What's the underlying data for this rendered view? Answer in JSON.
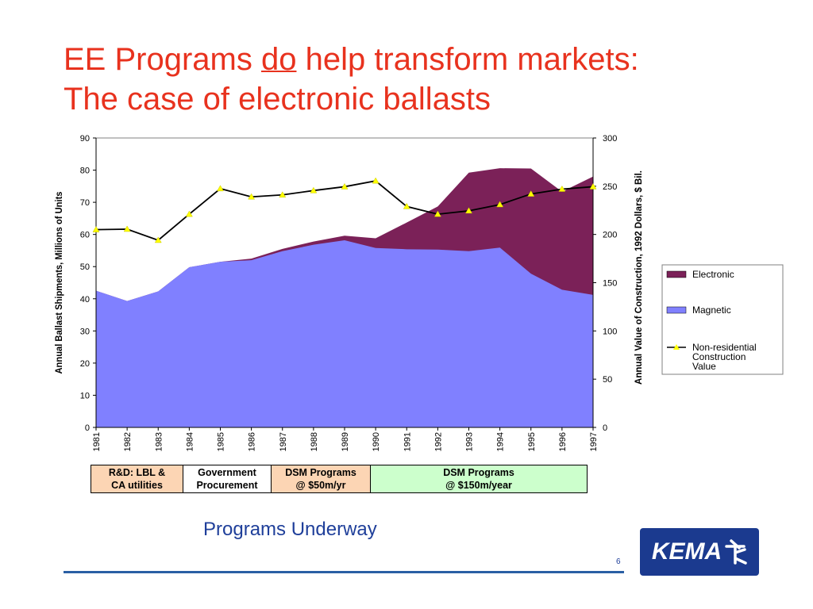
{
  "title": {
    "line1_pre": "EE Programs ",
    "line1_emph": "do",
    "line1_post": " help transform markets:",
    "line2": "The case of electronic ballasts"
  },
  "chart_data": {
    "type": "area",
    "stacked": true,
    "categories": [
      "1981",
      "1982",
      "1983",
      "1984",
      "1985",
      "1986",
      "1987",
      "1988",
      "1989",
      "1990",
      "1991",
      "1992",
      "1993",
      "1994",
      "1995",
      "1996",
      "1997"
    ],
    "series": [
      {
        "name": "Magnetic",
        "type": "area",
        "axis": "left",
        "color": "#8080ff",
        "values": [
          42.5,
          39.3,
          42.3,
          49.8,
          51.5,
          52.0,
          54.8,
          56.8,
          58.2,
          55.8,
          55.4,
          55.3,
          54.8,
          55.9,
          47.8,
          42.8,
          41.2
        ]
      },
      {
        "name": "Electronic",
        "type": "area",
        "axis": "left",
        "color": "#7b2158",
        "values": [
          0.0,
          0.0,
          0.0,
          0.0,
          0.0,
          0.5,
          0.7,
          1.0,
          1.4,
          3.0,
          8.3,
          13.4,
          24.4,
          24.7,
          32.7,
          30.5,
          36.8
        ]
      },
      {
        "name": "Non-residential Construction Value",
        "type": "line",
        "axis": "right",
        "color": "#000000",
        "marker_color": "#ffff00",
        "values": [
          205,
          205.5,
          194,
          221,
          247.5,
          239,
          241,
          245.5,
          249.5,
          255.5,
          229,
          221,
          224.5,
          231,
          242,
          247,
          249.5
        ]
      }
    ],
    "ylabel": "Annual Ballast Shipments, Millions of Units",
    "ylim": [
      0,
      90
    ],
    "yticks": [
      "0",
      "10",
      "20",
      "30",
      "40",
      "50",
      "60",
      "70",
      "80",
      "90"
    ],
    "y2label": "Annual Value of Construction, 1992 Dollars, $ Bil.",
    "y2lim": [
      0,
      300
    ],
    "y2ticks": [
      "0",
      "50",
      "100",
      "150",
      "200",
      "250",
      "300"
    ],
    "legend": {
      "placement": "right",
      "entries": [
        {
          "label": "Electronic",
          "style": "swatch",
          "color": "#7b2158"
        },
        {
          "label": "Magnetic",
          "style": "swatch",
          "color": "#8080ff"
        },
        {
          "label": "Non-residential Construction Value",
          "lines": [
            "Non-residential",
            "Construction",
            "Value"
          ],
          "style": "line-marker",
          "color": "#000000"
        }
      ]
    },
    "grid": false
  },
  "phases": [
    {
      "line1": "R&D:  LBL &",
      "line2": "CA utilities",
      "color": "#fcd5b4"
    },
    {
      "line1": "Government",
      "line2": "Procurement",
      "color": "#ffffff"
    },
    {
      "line1": "DSM Programs",
      "line2": "@ $50m/yr",
      "color": "#fcd5b4"
    },
    {
      "line1": "DSM Programs",
      "line2": "@ $150m/year",
      "color": "#ccffcc"
    }
  ],
  "subtitle": "Programs Underway",
  "page_number": "6",
  "logo": {
    "text": "KEMA",
    "icon": "kema-logo-mark"
  },
  "colors": {
    "title": "#e8321e",
    "subtitle": "#1f3f9a",
    "footer_line": "#2a5fa4",
    "logo_bg": "#1b3a8f"
  }
}
